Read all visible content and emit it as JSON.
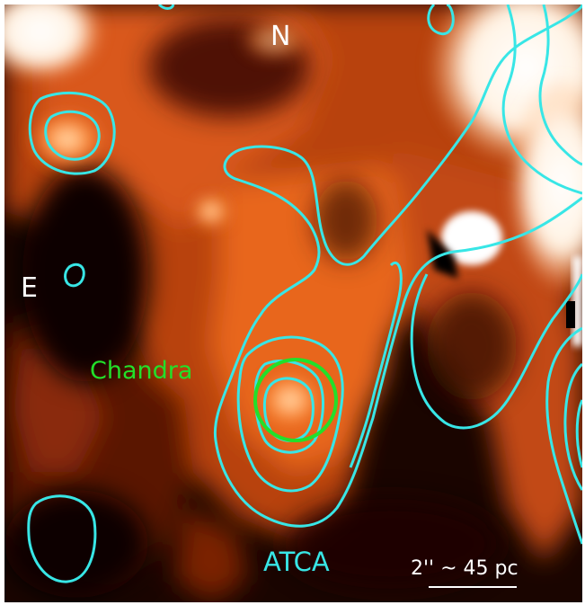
{
  "labels": {
    "north": "N",
    "east": "E",
    "xray": "Chandra",
    "radio": "ATCA",
    "scale": "2'' ~ 45 pc"
  },
  "colors": {
    "radio_contours": "#38e6e6",
    "xray_circle": "#22e02a",
    "labels_white": "#ffffff",
    "background_dark": "#000000",
    "emission_orange": "#e8651c",
    "emission_bright": "#ffd9a8"
  }
}
